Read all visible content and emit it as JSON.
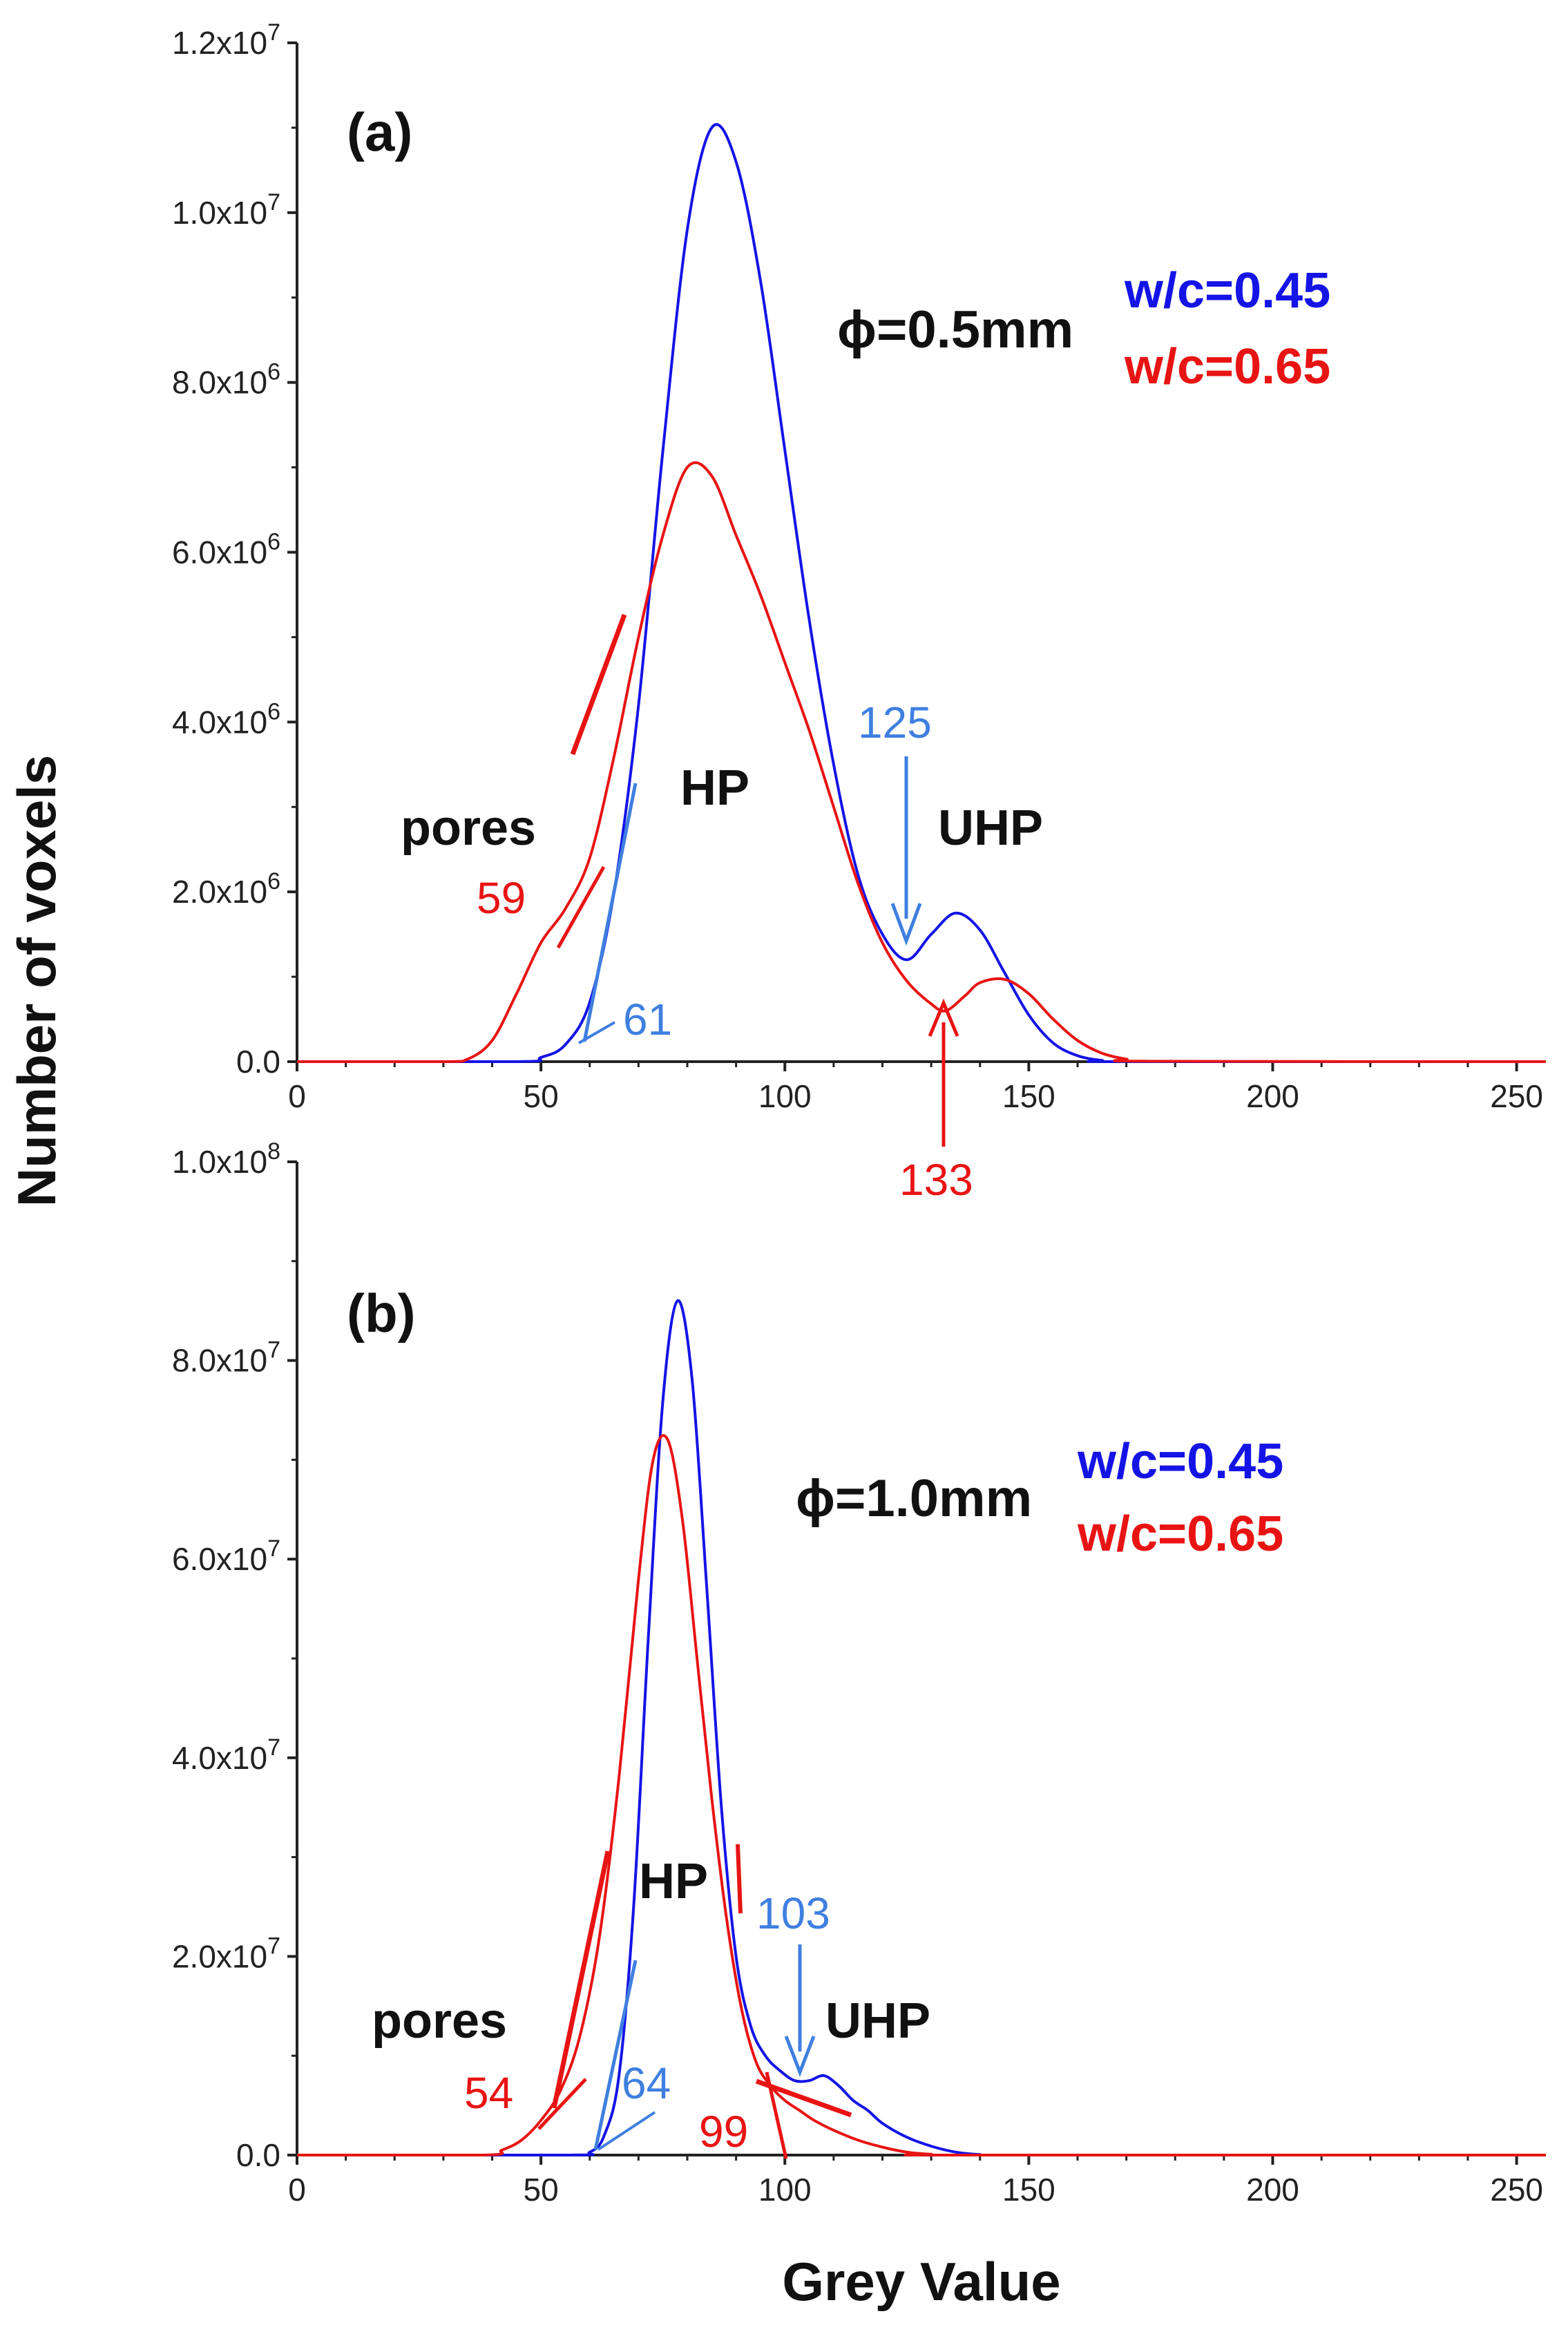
{
  "colors": {
    "blue_series": "#1414e6",
    "red_series": "#e81414",
    "blue_annotation": "#3f7fe0",
    "red_annotation": "#e81414",
    "axis": "#222222"
  },
  "figure": {
    "ylabel": "Number of voxels",
    "xlabel": "Grey Value"
  },
  "chart_data": [
    {
      "type": "line",
      "panel_label": "(a)",
      "title": "",
      "xlabel": "",
      "ylabel": "Number of voxels",
      "xlim": [
        0,
        256
      ],
      "ylim": [
        0,
        12000000
      ],
      "x_ticks": [
        0,
        50,
        100,
        150,
        200,
        250
      ],
      "x_tick_labels": [
        "0",
        "50",
        "100",
        "150",
        "200",
        "250"
      ],
      "y_ticks": [
        0,
        2000000,
        4000000,
        6000000,
        8000000,
        10000000,
        12000000
      ],
      "y_tick_labels": [
        {
          "mant": "0.0",
          "exp": ""
        },
        {
          "mant": "2.0x10",
          "exp": "6"
        },
        {
          "mant": "4.0x10",
          "exp": "6"
        },
        {
          "mant": "6.0x10",
          "exp": "6"
        },
        {
          "mant": "8.0x10",
          "exp": "6"
        },
        {
          "mant": "1.0x10",
          "exp": "7"
        },
        {
          "mant": "1.2x10",
          "exp": "7"
        }
      ],
      "phi_label": "ϕ=0.5mm",
      "series": [
        {
          "name": "w/c=0.45",
          "color": "#1414e6",
          "x": [
            0,
            45,
            50,
            55,
            60,
            65,
            70,
            75,
            80,
            85,
            90,
            95,
            100,
            105,
            110,
            115,
            120,
            125,
            130,
            135,
            140,
            145,
            150,
            155,
            160,
            165,
            170,
            256
          ],
          "y": [
            0,
            0,
            50000,
            200000,
            700000,
            2000000,
            4200000,
            7200000,
            9800000,
            11000000,
            10600000,
            9200000,
            7200000,
            5200000,
            3500000,
            2200000,
            1500000,
            1200000,
            1500000,
            1750000,
            1550000,
            1050000,
            550000,
            220000,
            70000,
            15000,
            0,
            0
          ]
        },
        {
          "name": "w/c=0.65",
          "color": "#e81414",
          "x": [
            0,
            30,
            35,
            40,
            45,
            50,
            55,
            60,
            65,
            70,
            75,
            80,
            85,
            90,
            95,
            100,
            105,
            110,
            115,
            120,
            125,
            130,
            133,
            137,
            140,
            145,
            150,
            155,
            160,
            165,
            170,
            175,
            256
          ],
          "y": [
            0,
            0,
            30000,
            250000,
            800000,
            1400000,
            1800000,
            2400000,
            3600000,
            5000000,
            6200000,
            7000000,
            6900000,
            6200000,
            5500000,
            4700000,
            3900000,
            3000000,
            2100000,
            1400000,
            950000,
            680000,
            600000,
            780000,
            930000,
            970000,
            800000,
            500000,
            250000,
            100000,
            30000,
            5000,
            0
          ]
        }
      ],
      "annotations": {
        "region_labels": [
          "pores",
          "HP",
          "UHP"
        ],
        "blue_values": [
          "125",
          "61"
        ],
        "red_values": [
          "59",
          "133"
        ]
      }
    },
    {
      "type": "line",
      "panel_label": "(b)",
      "title": "",
      "xlabel": "Grey Value",
      "ylabel": "Number of voxels",
      "xlim": [
        0,
        256
      ],
      "ylim": [
        0,
        100000000
      ],
      "x_ticks": [
        0,
        50,
        100,
        150,
        200,
        250
      ],
      "x_tick_labels": [
        "0",
        "50",
        "100",
        "150",
        "200",
        "250"
      ],
      "y_ticks": [
        0,
        20000000,
        40000000,
        60000000,
        80000000,
        100000000
      ],
      "y_tick_labels": [
        {
          "mant": "0.0",
          "exp": ""
        },
        {
          "mant": "2.0x10",
          "exp": "7"
        },
        {
          "mant": "4.0x10",
          "exp": "7"
        },
        {
          "mant": "6.0x10",
          "exp": "7"
        },
        {
          "mant": "8.0x10",
          "exp": "7"
        },
        {
          "mant": "1.0x10",
          "exp": "8"
        }
      ],
      "phi_label": "ϕ=1.0mm",
      "series": [
        {
          "name": "w/c=0.45",
          "color": "#1414e6",
          "x": [
            0,
            55,
            60,
            63,
            66,
            69,
            72,
            75,
            78,
            81,
            84,
            87,
            90,
            93,
            96,
            99,
            102,
            105,
            108,
            111,
            114,
            117,
            120,
            125,
            130,
            135,
            140,
            145,
            256
          ],
          "y": [
            0,
            0,
            300000,
            2000000,
            8000000,
            25000000,
            52000000,
            76000000,
            86000000,
            78000000,
            57000000,
            35000000,
            20000000,
            13000000,
            10000000,
            8500000,
            7500000,
            7500000,
            8000000,
            7000000,
            5500000,
            4500000,
            3200000,
            1800000,
            900000,
            300000,
            50000,
            0,
            0
          ]
        },
        {
          "name": "w/c=0.65",
          "color": "#e81414",
          "x": [
            0,
            38,
            42,
            46,
            50,
            54,
            58,
            62,
            66,
            70,
            73,
            76,
            79,
            82,
            85,
            88,
            91,
            94,
            97,
            100,
            103,
            106,
            110,
            115,
            120,
            125,
            130,
            135,
            256
          ],
          "y": [
            0,
            0,
            500000,
            1500000,
            3500000,
            6500000,
            12000000,
            22000000,
            38000000,
            58000000,
            70000000,
            72000000,
            64000000,
            50000000,
            36000000,
            24000000,
            15000000,
            9500000,
            7000000,
            5500000,
            4500000,
            3500000,
            2500000,
            1500000,
            800000,
            300000,
            80000,
            0,
            0
          ]
        }
      ],
      "annotations": {
        "region_labels": [
          "pores",
          "HP",
          "UHP"
        ],
        "blue_values": [
          "103",
          "64"
        ],
        "red_values": [
          "54",
          "99"
        ]
      }
    }
  ]
}
